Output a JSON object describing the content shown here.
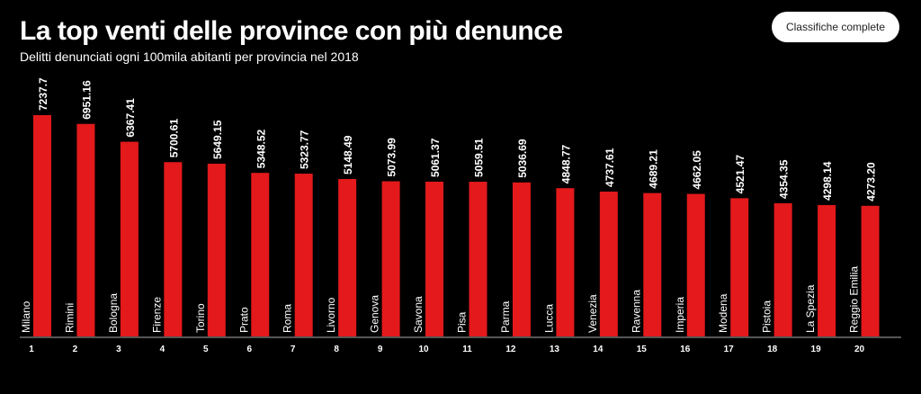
{
  "header": {
    "title": "La top venti delle province con più denunce",
    "button_label": "Classifiche complete"
  },
  "chart_data": {
    "type": "bar",
    "title": "La top venti delle province con più denunce",
    "subtitle": "Delitti denunciati ogni 100mila abitanti per provincia nel 2018",
    "categories": [
      "Milano",
      "Rimini",
      "Bologna",
      "Firenze",
      "Torino",
      "Prato",
      "Roma",
      "Livorno",
      "Genova",
      "Savona",
      "Pisa",
      "Parma",
      "Lucca",
      "Venezia",
      "Ravenna",
      "Imperia",
      "Modena",
      "Pistoia",
      "La Spezia",
      "Reggio Emilia"
    ],
    "ranks": [
      "1",
      "2",
      "3",
      "4",
      "5",
      "6",
      "7",
      "8",
      "9",
      "10",
      "11",
      "12",
      "13",
      "14",
      "15",
      "16",
      "17",
      "18",
      "19",
      "20"
    ],
    "values": [
      7237.7,
      6951.16,
      6367.41,
      5700.61,
      5649.15,
      5348.52,
      5323.77,
      5148.49,
      5073.99,
      5061.37,
      5059.51,
      5036.69,
      4848.77,
      4737.61,
      4689.21,
      4662.05,
      4521.47,
      4354.35,
      4298.14,
      4273.2
    ],
    "value_labels": [
      "7237.7",
      "6951.16",
      "6367.41",
      "5700.61",
      "5649.15",
      "5348.52",
      "5323.77",
      "5148.49",
      "5073.99",
      "5061.37",
      "5059.51",
      "5036.69",
      "4848.77",
      "4737.61",
      "4689.21",
      "4662.05",
      "4521.47",
      "4354.35",
      "4298.14",
      "4273.20"
    ],
    "xlabel": "",
    "ylabel": "",
    "ylim": [
      0,
      7237.7
    ],
    "grid": false,
    "bar_color": "#e3191b"
  }
}
